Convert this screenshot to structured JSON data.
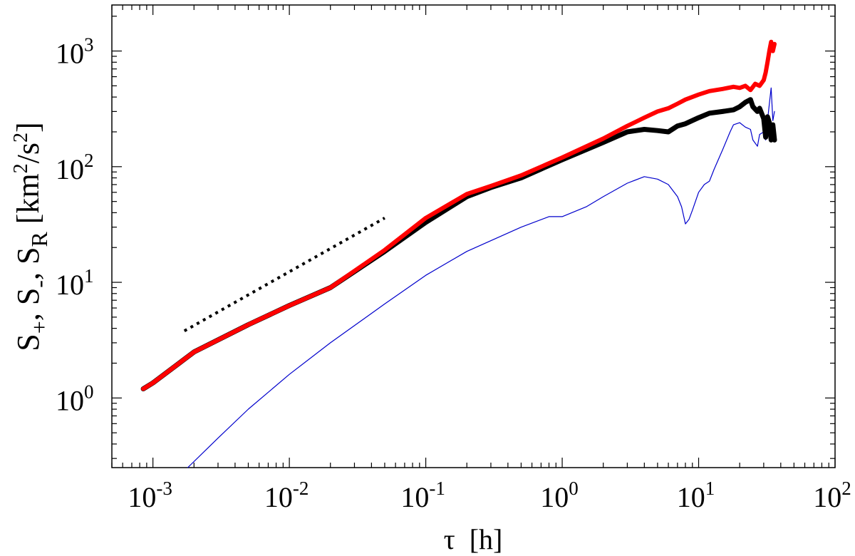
{
  "chart_data": {
    "type": "line",
    "xscale": "log",
    "yscale": "log",
    "xlim": [
      0.0005,
      100
    ],
    "ylim": [
      0.25,
      2500
    ],
    "xlabel": {
      "main": "τ",
      "unit": "[h]"
    },
    "ylabel": {
      "s1": "S",
      "s1_sub": "+",
      "sep1": ", ",
      "s2": "S",
      "s2_sub": "-",
      "sep2": ", ",
      "s3": "S",
      "s3_sub": "R",
      "unit_open": " [km",
      "unit_sup1": "2",
      "unit_mid": "/s",
      "unit_sup2": "2",
      "unit_close": "]"
    },
    "xticks": [
      {
        "value": 0.001,
        "base": "10",
        "exp": "-3"
      },
      {
        "value": 0.01,
        "base": "10",
        "exp": "-2"
      },
      {
        "value": 0.1,
        "base": "10",
        "exp": "-1"
      },
      {
        "value": 1,
        "base": "10",
        "exp": "0"
      },
      {
        "value": 10,
        "base": "10",
        "exp": "1"
      },
      {
        "value": 100,
        "base": "10",
        "exp": "2"
      }
    ],
    "yticks": [
      {
        "value": 1,
        "base": "10",
        "exp": "0"
      },
      {
        "value": 10,
        "base": "10",
        "exp": "1"
      },
      {
        "value": 100,
        "base": "10",
        "exp": "2"
      },
      {
        "value": 1000,
        "base": "10",
        "exp": "3"
      }
    ],
    "series": [
      {
        "name": "S+",
        "color": "#000000",
        "x": [
          0.00085,
          0.001,
          0.002,
          0.005,
          0.01,
          0.02,
          0.05,
          0.1,
          0.2,
          0.3,
          0.5,
          1,
          2,
          3,
          4,
          5,
          6,
          7,
          8,
          10,
          12,
          15,
          18,
          20,
          22,
          24,
          25,
          27,
          28,
          30,
          31,
          32,
          33,
          34,
          35,
          36
        ],
        "y": [
          1.2,
          1.35,
          2.5,
          4.3,
          6.3,
          9.0,
          18.5,
          33,
          55,
          66,
          80,
          115,
          162,
          200,
          210,
          205,
          200,
          225,
          235,
          265,
          290,
          300,
          310,
          330,
          360,
          380,
          330,
          300,
          320,
          260,
          180,
          270,
          240,
          170,
          230,
          170
        ]
      },
      {
        "name": "S-",
        "color": "#ff0000",
        "x": [
          0.00085,
          0.001,
          0.002,
          0.005,
          0.01,
          0.02,
          0.05,
          0.1,
          0.2,
          0.3,
          0.5,
          1,
          2,
          3,
          4,
          5,
          6,
          7,
          8,
          10,
          12,
          15,
          18,
          20,
          22,
          24,
          26,
          28,
          30,
          31,
          32,
          33,
          34,
          35,
          36
        ],
        "y": [
          1.2,
          1.35,
          2.5,
          4.3,
          6.3,
          9.0,
          19,
          36,
          58,
          68,
          84,
          120,
          175,
          225,
          265,
          300,
          320,
          350,
          380,
          420,
          450,
          470,
          490,
          480,
          500,
          460,
          520,
          500,
          560,
          650,
          800,
          1000,
          1200,
          1000,
          1150
        ]
      },
      {
        "name": "SR",
        "color": "#0000cc",
        "x": [
          0.0018,
          0.003,
          0.005,
          0.01,
          0.02,
          0.05,
          0.1,
          0.2,
          0.5,
          0.8,
          1,
          1.5,
          2,
          3,
          4,
          5,
          6,
          7,
          7.5,
          8,
          8.5,
          9,
          10,
          11,
          12,
          13,
          15,
          17,
          18,
          20,
          22,
          24,
          25,
          27,
          28,
          30,
          31,
          32,
          33,
          34,
          35,
          36
        ],
        "y": [
          0.25,
          0.45,
          0.8,
          1.6,
          3.0,
          6.5,
          11.5,
          18.5,
          30,
          37,
          37,
          45,
          55,
          72,
          82,
          78,
          70,
          55,
          45,
          32,
          35,
          42,
          60,
          70,
          75,
          95,
          140,
          200,
          230,
          240,
          220,
          210,
          170,
          150,
          190,
          200,
          170,
          250,
          350,
          480,
          250,
          300
        ]
      }
    ],
    "reference_line": {
      "name": "slope reference",
      "style": "dotted",
      "color": "#000000",
      "x": [
        0.0017,
        0.05
      ],
      "y": [
        3.8,
        36
      ]
    }
  }
}
